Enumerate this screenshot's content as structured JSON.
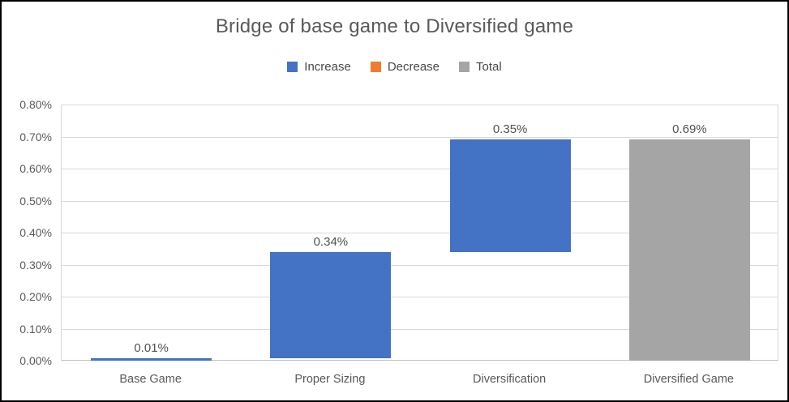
{
  "chart_data": {
    "type": "bar",
    "subtype": "waterfall",
    "title": "Bridge of base game to Diversified game",
    "categories": [
      "Base Game",
      "Proper Sizing",
      "Diversification",
      "Diversified Game"
    ],
    "series": [
      {
        "name": "Increase",
        "color": "#4472C4"
      },
      {
        "name": "Decrease",
        "color": "#ED7D31"
      },
      {
        "name": "Total",
        "color": "#A5A5A5"
      }
    ],
    "bars": [
      {
        "category": "Base Game",
        "series": "Increase",
        "start": 0.0,
        "end": 0.008,
        "label": "0.01%"
      },
      {
        "category": "Proper Sizing",
        "series": "Increase",
        "start": 0.008,
        "end": 0.34,
        "label": "0.34%"
      },
      {
        "category": "Diversification",
        "series": "Increase",
        "start": 0.34,
        "end": 0.69,
        "label": "0.35%"
      },
      {
        "category": "Diversified Game",
        "series": "Total",
        "start": 0.0,
        "end": 0.69,
        "label": "0.69%"
      }
    ],
    "ylim": [
      0,
      0.8
    ],
    "ytick_step": 0.1,
    "ytick_labels": [
      "0.00%",
      "0.10%",
      "0.20%",
      "0.30%",
      "0.40%",
      "0.50%",
      "0.60%",
      "0.70%",
      "0.80%"
    ],
    "yunit": "percent",
    "grid": true,
    "legend_position": "top",
    "xlabel": "",
    "ylabel": ""
  }
}
